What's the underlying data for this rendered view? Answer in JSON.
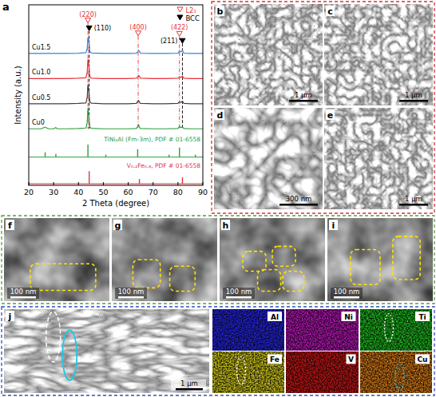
{
  "chart_data": {
    "type": "line",
    "panel_label": "a",
    "xlabel": "2 Theta (degree)",
    "ylabel": "Intensity (a.u.)",
    "xlim": [
      20,
      90
    ],
    "xticks": [
      20,
      30,
      40,
      50,
      60,
      70,
      80,
      90
    ],
    "ylim": [
      0,
      115
    ],
    "tick_labels": "x",
    "legend": "upper right",
    "x": [
      20,
      25,
      26.5,
      28,
      30,
      30.8,
      31.6,
      35,
      40,
      43.0,
      43.5,
      43.8,
      44.1,
      44.3,
      44.6,
      45.2,
      50,
      55,
      60,
      63.3,
      63.8,
      64.2,
      64.5,
      64.9,
      70,
      75,
      80.0,
      80.6,
      81.1,
      81.8,
      82.4,
      85,
      90
    ],
    "series": [
      {
        "name": "Cu0",
        "color": "#2e9e3e",
        "values": [
          36,
          36,
          37,
          36,
          36,
          36.8,
          36,
          36,
          36.2,
          36.5,
          40,
          49,
          44,
          41,
          37,
          36.3,
          36,
          36,
          36,
          36.2,
          37.5,
          38.5,
          37,
          36.2,
          36,
          36,
          36.2,
          37.5,
          36.8,
          37.2,
          36.2,
          36,
          36
        ]
      },
      {
        "name": "Cu0.5",
        "color": "#404040",
        "values": [
          52,
          52,
          52,
          52,
          52,
          52,
          52,
          52,
          52.2,
          52.5,
          56,
          64,
          61,
          57,
          53,
          52.3,
          52,
          52,
          52,
          52.2,
          53.5,
          54,
          53,
          52.2,
          52,
          52,
          52.2,
          53.2,
          52.8,
          53.5,
          52.2,
          52,
          52
        ]
      },
      {
        "name": "Cu1.0",
        "color": "#e8303a",
        "values": [
          68,
          68,
          68,
          68,
          68,
          68,
          68,
          68,
          68.2,
          68.5,
          72,
          80,
          78,
          74,
          69,
          68.3,
          68,
          68,
          68,
          68.2,
          69,
          70,
          69.5,
          68.2,
          68,
          68,
          68.2,
          69,
          68.8,
          69.5,
          68.2,
          68,
          68
        ]
      },
      {
        "name": "Cu1.5",
        "color": "#3a7fd5",
        "values": [
          84,
          84,
          84,
          84,
          84,
          84,
          84,
          84,
          84.2,
          84.5,
          87,
          94,
          93,
          90,
          85,
          84.3,
          84,
          84,
          84,
          84.2,
          85,
          85.8,
          85.5,
          84.2,
          84,
          84,
          84.2,
          85.5,
          85,
          86,
          84.2,
          84,
          84
        ]
      }
    ],
    "references": [
      {
        "name": "TiNi₂Al (Fm-3m), PDF # 01-6558",
        "color": "#2e9e3e",
        "base": 18,
        "x": [
          26.6,
          30.9,
          43.8,
          51.0,
          63.8,
          76.4,
          80.6,
          87.0
        ],
        "values": [
          21,
          20,
          26,
          19.5,
          23,
          19.5,
          24,
          19.5
        ]
      },
      {
        "name": "V₀.₂Fe₀.₈, PDF # 01-6558",
        "color": "#e8303a",
        "base": 1,
        "x": [
          44.3,
          64.5,
          81.8
        ],
        "values": [
          9,
          4,
          5
        ]
      }
    ],
    "phases": [
      {
        "name": "L2₁",
        "marker": "triangle-open",
        "color": "#e8303a",
        "line_style": "dashdot"
      },
      {
        "name": "BCC",
        "marker": "triangle-filled",
        "color": "#000000",
        "line_style": "dashed"
      }
    ],
    "peaks": [
      {
        "x": 43.8,
        "label": "(220)",
        "phase": "L2₁"
      },
      {
        "x": 44.3,
        "label": "(110)",
        "phase": "BCC"
      },
      {
        "x": 64.0,
        "label": "(400)",
        "phase": "L2₁"
      },
      {
        "x": 80.6,
        "label": "(422)",
        "phase": "L2₁"
      },
      {
        "x": 81.8,
        "label": "(211)",
        "phase": "BCC"
      }
    ]
  },
  "panels": {
    "sem": [
      {
        "label": "b",
        "scale_bar": "1 μm"
      },
      {
        "label": "c",
        "scale_bar": "1 μm"
      },
      {
        "label": "d",
        "scale_bar": "300 nm"
      },
      {
        "label": "e",
        "scale_bar": "1 μm"
      }
    ],
    "tem": [
      {
        "label": "f",
        "scale_bar": "100 nm"
      },
      {
        "label": "g",
        "scale_bar": "100 nm"
      },
      {
        "label": "h",
        "scale_bar": "100 nm"
      },
      {
        "label": "i",
        "scale_bar": "100 nm"
      }
    ],
    "eds": {
      "label": "j",
      "scale_bar": "1 μm",
      "maps": [
        {
          "element": "Al",
          "color": "#2a2aff"
        },
        {
          "element": "Ni",
          "color": "#d21ad2"
        },
        {
          "element": "Ti",
          "color": "#22d022"
        },
        {
          "element": "Fe",
          "color": "#e8e020"
        },
        {
          "element": "V",
          "color": "#e01818"
        },
        {
          "element": "Cu",
          "color": "#f08a1a"
        }
      ]
    }
  }
}
